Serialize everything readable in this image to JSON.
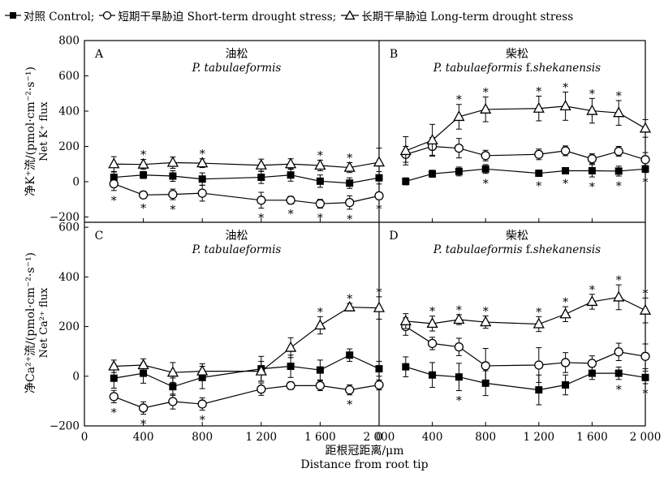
{
  "legend": [
    {
      "marker": "square-filled",
      "text": "对照 Control;"
    },
    {
      "marker": "circle-open",
      "text": "短期干旱胁迫 Short-term drought stress;"
    },
    {
      "marker": "triangle-open",
      "text": "长期干旱胁迫 Long-term drought stress"
    }
  ],
  "xaxis": {
    "label_cn": "距根冠距离/μm",
    "label_en": "Distance from root tip",
    "ticks": [
      0,
      400,
      800,
      1200,
      1600,
      2000
    ],
    "tick_labels": [
      "0",
      "400",
      "800",
      "1 200",
      "1 600",
      "2 000"
    ]
  },
  "ylabels": {
    "top_cn": "净K⁺流/(pmol·cm⁻²·s⁻¹)",
    "top_en": "Net K⁺ flux",
    "bottom_cn": "净Ca²⁺流/(pmol·cm⁻²·s⁻¹)",
    "bottom_en": "Net Ca²⁺ flux"
  },
  "chart_data": [
    {
      "type": "line",
      "panel": "A",
      "title_cn": "油松",
      "title_en_italic": "P. tabulaeformis",
      "title_en_plain": "",
      "x": [
        200,
        400,
        600,
        800,
        1200,
        1400,
        1600,
        1800,
        2000
      ],
      "ylim": [
        -230,
        800
      ],
      "yticks": [
        -200,
        0,
        200,
        400,
        600,
        800
      ],
      "series": [
        {
          "key": "control",
          "marker": "square-filled",
          "values": [
            25,
            38,
            32,
            15,
            25,
            38,
            3,
            -8,
            22
          ],
          "err": [
            30,
            20,
            30,
            35,
            35,
            35,
            35,
            30,
            35
          ],
          "stars": [
            false,
            false,
            false,
            false,
            false,
            false,
            false,
            false,
            false
          ]
        },
        {
          "key": "short",
          "marker": "circle-open",
          "values": [
            -12,
            -75,
            -72,
            -65,
            -105,
            -105,
            -125,
            -118,
            -80
          ],
          "err": [
            38,
            20,
            30,
            45,
            45,
            22,
            25,
            38,
            20
          ],
          "stars": [
            true,
            true,
            true,
            false,
            true,
            true,
            true,
            true,
            true
          ]
        },
        {
          "key": "long",
          "marker": "triangle-open",
          "values": [
            100,
            98,
            108,
            105,
            93,
            100,
            92,
            80,
            110
          ],
          "err": [
            42,
            28,
            32,
            25,
            35,
            30,
            30,
            28,
            80
          ],
          "stars": [
            false,
            true,
            false,
            true,
            false,
            false,
            true,
            true,
            false
          ]
        }
      ]
    },
    {
      "type": "line",
      "panel": "B",
      "title_cn": "柴松",
      "title_en_italic": "P. tabulaeformis",
      "title_en_plain": " f.",
      "title_en_italic2": "shekanensis",
      "x": [
        200,
        400,
        600,
        800,
        1200,
        1400,
        1600,
        1800,
        2000
      ],
      "ylim": [
        -230,
        800
      ],
      "yticks": [
        -200,
        0,
        200,
        400,
        600,
        800
      ],
      "series": [
        {
          "key": "control",
          "marker": "square-filled",
          "values": [
            2,
            45,
            58,
            72,
            48,
            62,
            62,
            60,
            72
          ],
          "err": [
            20,
            20,
            25,
            25,
            15,
            15,
            35,
            28,
            20
          ],
          "stars": [
            false,
            false,
            false,
            true,
            true,
            true,
            true,
            true,
            true
          ]
        },
        {
          "key": "short",
          "marker": "circle-open",
          "values": [
            155,
            200,
            190,
            148,
            155,
            175,
            130,
            172,
            125
          ],
          "err": [
            45,
            50,
            55,
            30,
            30,
            28,
            28,
            28,
            40
          ],
          "stars": [
            false,
            false,
            false,
            false,
            false,
            false,
            false,
            false,
            false
          ]
        },
        {
          "key": "long",
          "marker": "triangle-open",
          "values": [
            175,
            235,
            368,
            410,
            415,
            428,
            402,
            390,
            302
          ],
          "err": [
            80,
            90,
            70,
            70,
            70,
            80,
            70,
            70,
            50
          ],
          "stars": [
            false,
            false,
            true,
            true,
            true,
            true,
            true,
            true,
            false
          ]
        }
      ]
    },
    {
      "type": "line",
      "panel": "C",
      "title_cn": "油松",
      "title_en_italic": "P. tabulaeformis",
      "title_en_plain": "",
      "x": [
        200,
        400,
        600,
        800,
        1200,
        1400,
        1600,
        1800,
        2000
      ],
      "ylim": [
        -200,
        620
      ],
      "yticks": [
        -200,
        0,
        200,
        400,
        600
      ],
      "series": [
        {
          "key": "control",
          "marker": "square-filled",
          "values": [
            -8,
            12,
            -42,
            -5,
            30,
            40,
            25,
            85,
            30
          ],
          "err": [
            40,
            40,
            35,
            45,
            50,
            45,
            40,
            25,
            30
          ],
          "stars": [
            false,
            false,
            false,
            false,
            false,
            false,
            false,
            false,
            false
          ]
        },
        {
          "key": "short",
          "marker": "circle-open",
          "values": [
            -82,
            -128,
            -102,
            -112,
            -52,
            -38,
            -38,
            -55,
            -35
          ],
          "err": [
            25,
            25,
            30,
            25,
            25,
            15,
            20,
            20,
            20
          ],
          "stars": [
            true,
            true,
            false,
            true,
            false,
            false,
            false,
            true,
            false
          ]
        },
        {
          "key": "long",
          "marker": "triangle-open",
          "values": [
            40,
            45,
            15,
            20,
            20,
            115,
            205,
            278,
            275
          ],
          "err": [
            25,
            25,
            40,
            30,
            40,
            40,
            35,
            15,
            45
          ],
          "stars": [
            false,
            false,
            false,
            false,
            false,
            false,
            true,
            true,
            true
          ]
        }
      ]
    },
    {
      "type": "line",
      "panel": "D",
      "title_cn": "柴松",
      "title_en_italic": "P. tabulaeformis",
      "title_en_plain": " f.",
      "title_en_italic2": "shekanensis",
      "x": [
        200,
        400,
        600,
        800,
        1200,
        1400,
        1600,
        1800,
        2000
      ],
      "ylim": [
        -200,
        620
      ],
      "yticks": [
        -200,
        0,
        200,
        400,
        600
      ],
      "series": [
        {
          "key": "control",
          "marker": "square-filled",
          "values": [
            38,
            5,
            -3,
            -28,
            -55,
            -35,
            12,
            12,
            -5
          ],
          "err": [
            40,
            50,
            55,
            50,
            60,
            40,
            25,
            25,
            25
          ],
          "stars": [
            false,
            false,
            true,
            false,
            false,
            false,
            false,
            true,
            true
          ]
        },
        {
          "key": "short",
          "marker": "circle-open",
          "values": [
            200,
            132,
            118,
            42,
            45,
            55,
            52,
            98,
            80
          ],
          "err": [
            35,
            25,
            35,
            70,
            70,
            40,
            30,
            35,
            50
          ],
          "stars": [
            false,
            false,
            false,
            false,
            false,
            false,
            false,
            false,
            false
          ]
        },
        {
          "key": "long",
          "marker": "triangle-open",
          "values": [
            222,
            212,
            228,
            218,
            210,
            250,
            300,
            318,
            265
          ],
          "err": [
            30,
            30,
            20,
            25,
            30,
            30,
            30,
            50,
            50
          ],
          "stars": [
            false,
            true,
            true,
            true,
            true,
            true,
            true,
            true,
            true
          ]
        }
      ]
    }
  ]
}
